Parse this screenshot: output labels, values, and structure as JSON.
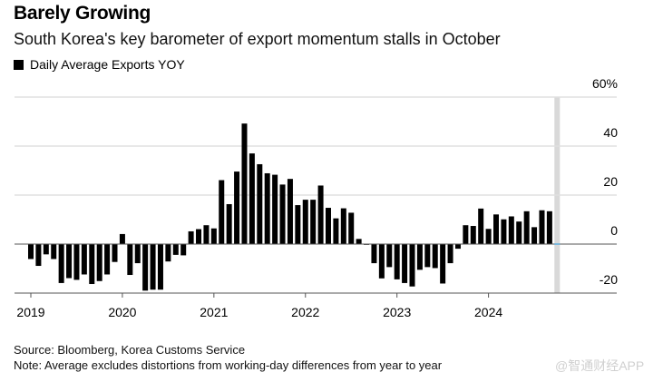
{
  "header": {
    "title": "Barely Growing",
    "subtitle": "South Korea's key barometer of export momentum stalls in October"
  },
  "footer": {
    "source": "Source: Bloomberg, Korea Customs Service",
    "note": "Note: Average excludes distortions from working-day differences from year to year",
    "watermark": "@智通财经APP"
  },
  "colors": {
    "bar": "#000000",
    "grid": "#e0e0e0",
    "axis": "#555555",
    "highlight": "#d9d9d9",
    "latest_marker": "#5aaee0"
  },
  "chart_data": {
    "type": "bar",
    "title": "Barely Growing",
    "subtitle": "South Korea's key barometer of export momentum stalls in October",
    "legend": [
      {
        "name": "Daily Average Exports YOY",
        "color": "#000000"
      }
    ],
    "legend_position": "top-left",
    "xlabel": "",
    "ylabel": "",
    "ylim": [
      -20,
      60
    ],
    "yticks": [
      {
        "value": 60,
        "label": "60%"
      },
      {
        "value": 40,
        "label": "40"
      },
      {
        "value": 20,
        "label": "20"
      },
      {
        "value": 0,
        "label": "0"
      },
      {
        "value": -20,
        "label": "-20"
      }
    ],
    "y_axis_side": "right",
    "grid": true,
    "xticks": [
      "2019",
      "2020",
      "2021",
      "2022",
      "2023",
      "2024"
    ],
    "start": "2019-01",
    "frequency": "monthly",
    "highlight_month": "2024-10",
    "series": [
      {
        "name": "Daily Average Exports YOY",
        "values": [
          -6.1,
          -8.9,
          -4.2,
          -6.1,
          -15.9,
          -13.9,
          -14.6,
          -12.4,
          -16.3,
          -15.1,
          -12.4,
          -7.3,
          4.1,
          -12.6,
          -7.8,
          -19.0,
          -18.6,
          -18.6,
          -7.1,
          -4.4,
          -4.6,
          5.2,
          6.1,
          7.7,
          6.4,
          26.1,
          16.3,
          29.6,
          49.2,
          37.0,
          32.6,
          28.9,
          28.3,
          24.3,
          26.6,
          15.9,
          18.1,
          18.1,
          23.9,
          14.8,
          10.5,
          14.6,
          12.8,
          2.1,
          -0.3,
          -7.8,
          -14.0,
          -9.4,
          -14.4,
          -15.9,
          -17.3,
          -10.5,
          -9.4,
          -9.8,
          -16.1,
          -7.8,
          -1.9,
          7.7,
          7.4,
          14.5,
          6.2,
          12.1,
          10.1,
          11.3,
          9.2,
          13.4,
          6.9,
          13.8,
          13.4,
          0.0
        ]
      }
    ]
  }
}
